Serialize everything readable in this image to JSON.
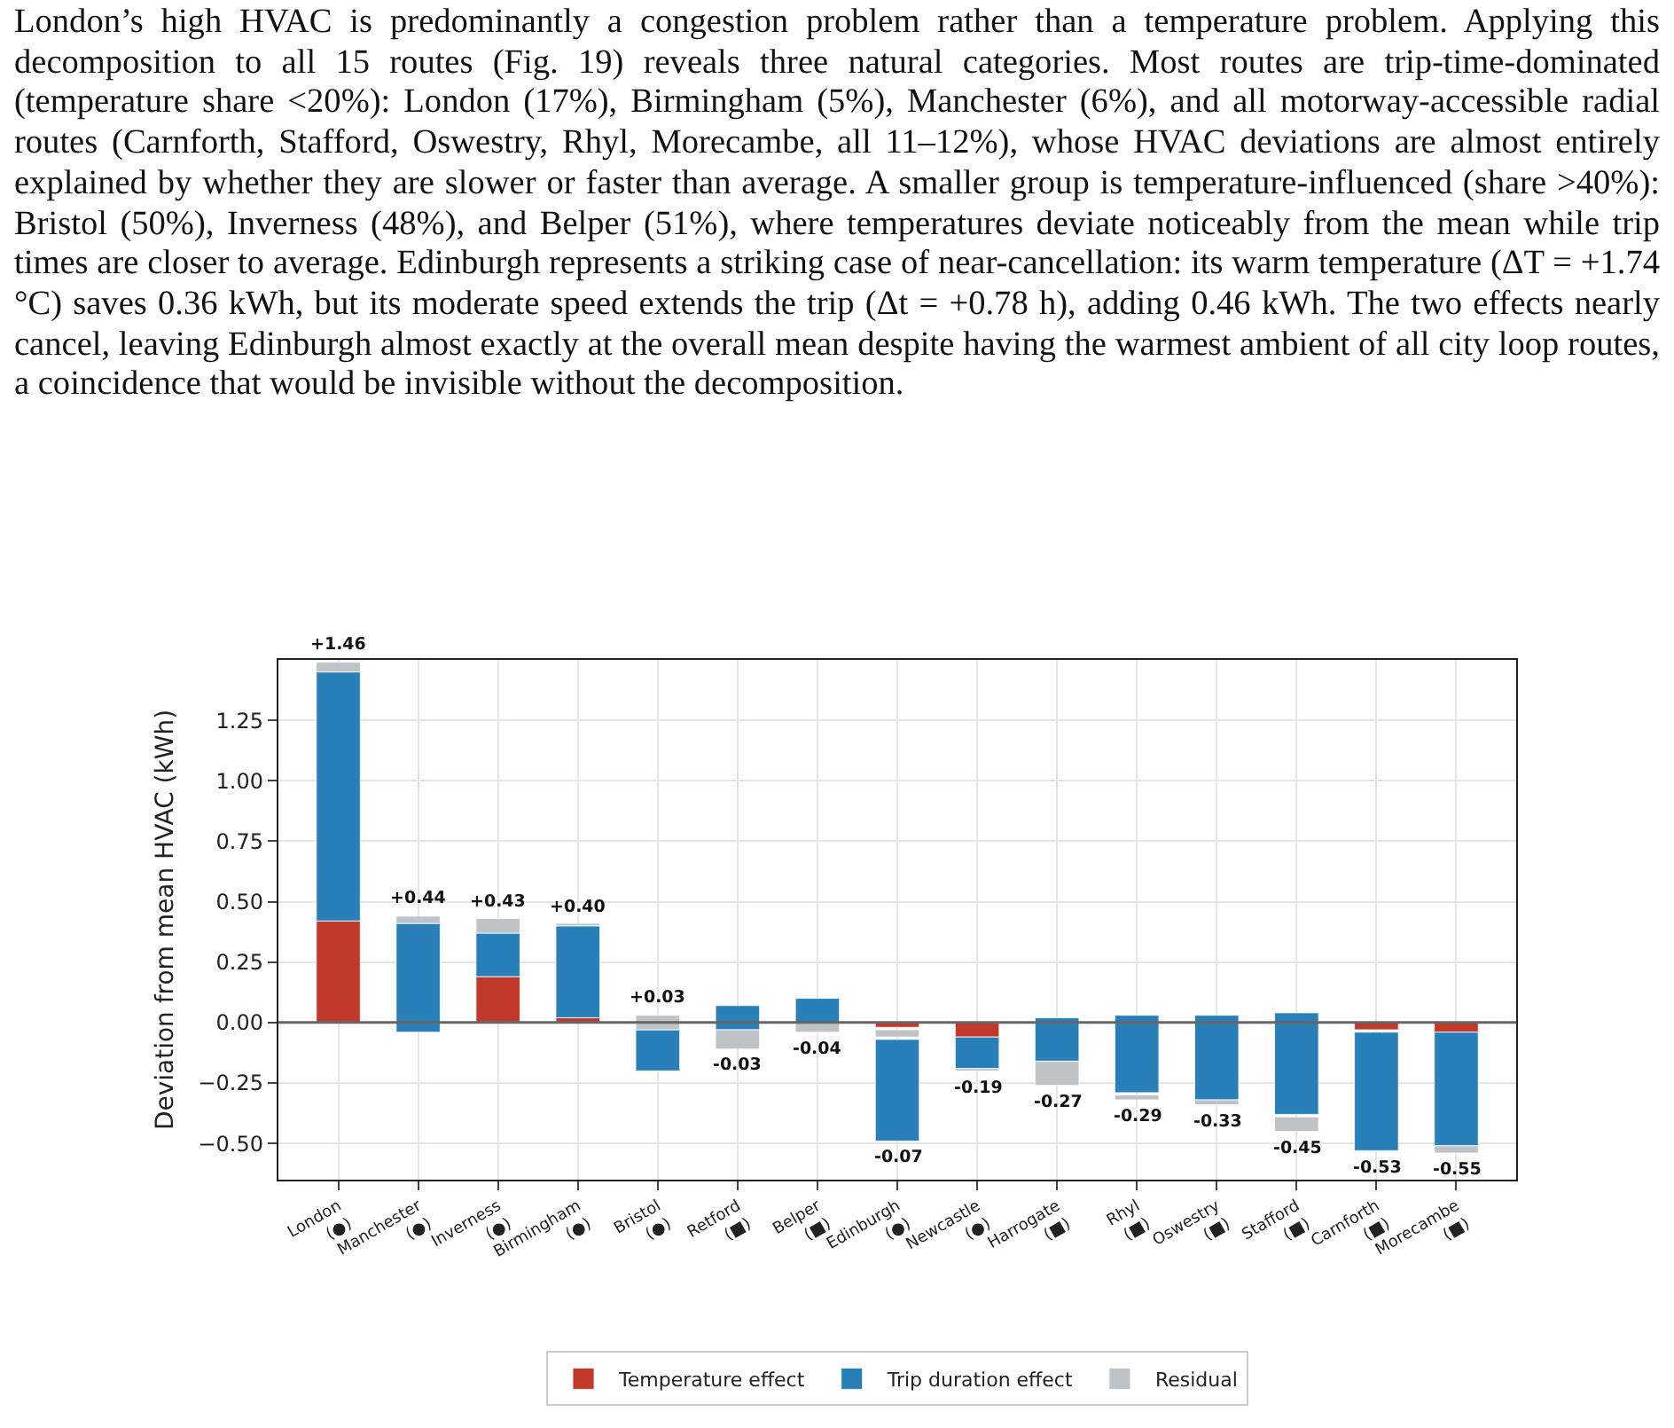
{
  "chart_data": {
    "type": "bar",
    "ylabel": "Deviation from mean HVAC (kWh)",
    "annotations": [
      "London’s high HVAC is predominantly a congestion problem rather than a temperature problem. Applying this decomposition to all 15 routes (Fig. 19) reveals three natural categories. Most routes are trip-time-dominated (temperature share <20%): London (17%), Birmingham (5%), Manchester (6%), and all motorway-accessible radial routes (Carnforth, Stafford, Oswestry, Rhyl, Morecambe, all 11–12%), whose HVAC deviations are almost entirely explained by whether they are slower or faster than average. A smaller group is temperature-influenced (share >40%): Bristol (50%), Inverness (48%), and Belper (51%), where temperatures deviate noticeably from the mean while trip times are closer to average. Edinburgh represents a striking case of near-cancellation: its warm temperature (ΔT = +1.74 °C) saves 0.36 kWh, but its moderate speed extends the trip (Δt = +0.78 h), adding 0.46 kWh. The two effects nearly cancel, leaving Edinburgh almost exactly at the overall mean despite having the warmest ambient of all city loop routes, a coincidence that would be invisible without the decomposition.",
      {
        "text": "+1.46",
        "x": "London\n(●)",
        "y": 1.49
      },
      {
        "text": "+0.44",
        "x": "Manchester\n(●)",
        "y": 0.44
      },
      {
        "text": "+0.43",
        "x": "Inverness\n(●)",
        "y": 0.43
      },
      {
        "text": "+0.40",
        "x": "Birmingham\n(●)",
        "y": 0.41
      },
      {
        "text": "+0.03",
        "x": "Bristol\n(●)",
        "y": 0.03
      },
      {
        "text": "-0.03",
        "x": "Retford\n(■)",
        "y": -0.11
      },
      {
        "text": "-0.04",
        "x": "Belper\n(■)",
        "y": -0.04
      },
      {
        "text": "-0.07",
        "x": "Edinburgh\n(●)",
        "y": -0.49
      },
      {
        "text": "-0.19",
        "x": "Newcastle\n(●)",
        "y": -0.2
      },
      {
        "text": "-0.27",
        "x": "Harrogate\n(■)",
        "y": -0.26
      },
      {
        "text": "-0.29",
        "x": "Rhyl\n(■)",
        "y": -0.32
      },
      {
        "text": "-0.33",
        "x": "Oswestry\n(■)",
        "y": -0.34
      },
      {
        "text": "-0.45",
        "x": "Stafford\n(■)",
        "y": -0.45
      },
      {
        "text": "-0.53",
        "x": "Carnforth\n(■)",
        "y": -0.53
      },
      {
        "text": "-0.55",
        "x": "Morecambe\n(■)",
        "y": -0.54
      }
    ],
    "categories": [
      "London\n(●)",
      "Manchester\n(●)",
      "Inverness\n(●)",
      "Birmingham\n(●)",
      "Bristol\n(●)",
      "Retford\n(■)",
      "Belper\n(■)",
      "Edinburgh\n(●)",
      "Newcastle\n(●)",
      "Harrogate\n(■)",
      "Rhyl\n(■)",
      "Oswestry\n(■)",
      "Stafford\n(■)",
      "Carnforth\n(■)",
      "Morecambe\n(■)"
    ],
    "series": [
      {
        "name": "Temperature effect",
        "color": "#c0392b",
        "values": [
          0.42,
          null,
          0.19,
          0.02,
          null,
          null,
          null,
          0.02,
          0.06,
          null,
          null,
          null,
          null,
          0.03,
          0.04
        ],
        "base": [
          0,
          null,
          0,
          0,
          null,
          null,
          null,
          -0.02,
          -0.06,
          null,
          null,
          null,
          null,
          -0.03,
          -0.04
        ]
      },
      {
        "name": "Trip duration effect",
        "color": "#2980b9",
        "values": [
          1.03,
          0.45,
          0.18,
          0.38,
          0.17,
          0.1,
          0.1,
          0.42,
          0.13,
          0.18,
          0.32,
          0.35,
          0.42,
          0.49,
          0.47
        ],
        "base": [
          0.42,
          -0.04,
          0.19,
          0.02,
          -0.2,
          -0.03,
          0,
          -0.49,
          -0.19,
          -0.16,
          -0.29,
          -0.32,
          -0.38,
          -0.53,
          -0.51
        ]
      },
      {
        "name": "Residual",
        "color": "#bdc3c7",
        "values": [
          0.04,
          0.03,
          0.06,
          0.01,
          0.06,
          0.08,
          0.04,
          0.03,
          0.01,
          0.1,
          0.02,
          0.02,
          0.06,
          null,
          0.03
        ],
        "base": [
          1.45,
          0.41,
          0.37,
          0.4,
          -0.03,
          -0.11,
          -0.04,
          -0.06,
          -0.2,
          -0.26,
          -0.32,
          -0.34,
          -0.45,
          null,
          -0.54
        ]
      }
    ],
    "ylim": [
      -0.65,
      1.5
    ],
    "yticks": [
      {
        "value": -0.5,
        "label": "−0.50"
      },
      {
        "value": -0.25,
        "label": "−0.25"
      },
      {
        "value": 0,
        "label": "0.00"
      },
      {
        "value": 0.25,
        "label": "0.25"
      },
      {
        "value": 0.5,
        "label": "0.50"
      },
      {
        "value": 0.75,
        "label": "0.75"
      },
      {
        "value": 1,
        "label": "1.00"
      },
      {
        "value": 1.25,
        "label": "1.25"
      }
    ],
    "ref_lines": [
      {
        "axis": "y",
        "value": 0,
        "color": "#666666"
      }
    ],
    "grid": true,
    "legend": "bottom"
  }
}
